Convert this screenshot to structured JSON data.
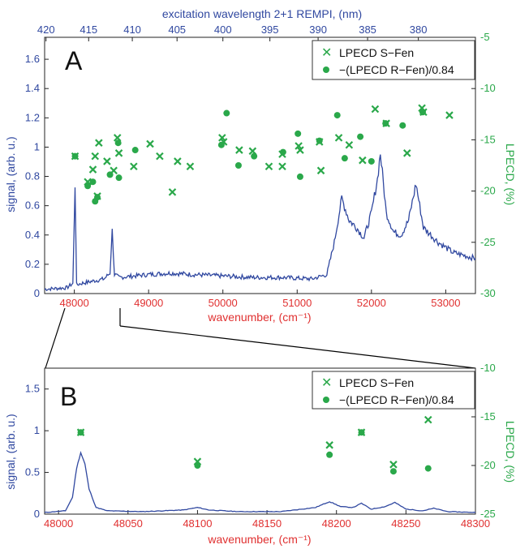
{
  "chart_data": [
    {
      "panel": "A",
      "type": "line+scatter",
      "panel_label": "A",
      "xlabel": "wavenumber, (cm⁻¹)",
      "ylabel_left": "signal, (arb. u.)",
      "ylabel_right": "LPECD, (%)",
      "xlabel_top": "excitation wavelength 2+1 REMPI, (nm)",
      "xlim": [
        47600,
        53400
      ],
      "ylim_left": [
        0,
        1.75
      ],
      "ylim_right": [
        -30,
        -5
      ],
      "xticks": [
        "48000",
        "49000",
        "50000",
        "51000",
        "52000",
        "53000"
      ],
      "yticks_left": [
        "0",
        "0.2",
        "0.4",
        "0.6",
        "0.8",
        "1",
        "1.2",
        "1.4",
        "1.6"
      ],
      "yticks_right": [
        "-30",
        "-25",
        "-20",
        "-15",
        "-10",
        "-5"
      ],
      "xticks_top": [
        "420",
        "415",
        "410",
        "405",
        "400",
        "395",
        "390",
        "385",
        "380"
      ],
      "legend": {
        "position": "top-right",
        "entries": [
          "LPECD S−Fen",
          "−(LPECD R−Fen)/0.84"
        ]
      },
      "signal": [
        [
          47600,
          0.03
        ],
        [
          47900,
          0.04
        ],
        [
          47980,
          0.07
        ],
        [
          48010,
          0.74
        ],
        [
          48030,
          0.06
        ],
        [
          48100,
          0.07
        ],
        [
          48200,
          0.08
        ],
        [
          48300,
          0.09
        ],
        [
          48400,
          0.1
        ],
        [
          48480,
          0.14
        ],
        [
          48510,
          0.43
        ],
        [
          48540,
          0.13
        ],
        [
          48600,
          0.11
        ],
        [
          48800,
          0.12
        ],
        [
          49000,
          0.13
        ],
        [
          49300,
          0.14
        ],
        [
          49600,
          0.13
        ],
        [
          50000,
          0.12
        ],
        [
          50400,
          0.11
        ],
        [
          50800,
          0.11
        ],
        [
          51200,
          0.1
        ],
        [
          51400,
          0.13
        ],
        [
          51500,
          0.35
        ],
        [
          51600,
          0.65
        ],
        [
          51700,
          0.5
        ],
        [
          51800,
          0.45
        ],
        [
          51900,
          0.38
        ],
        [
          52000,
          0.55
        ],
        [
          52080,
          0.78
        ],
        [
          52120,
          0.96
        ],
        [
          52200,
          0.55
        ],
        [
          52300,
          0.42
        ],
        [
          52400,
          0.4
        ],
        [
          52500,
          0.5
        ],
        [
          52600,
          0.75
        ],
        [
          52700,
          0.45
        ],
        [
          52900,
          0.35
        ],
        [
          53100,
          0.28
        ],
        [
          53400,
          0.24
        ]
      ],
      "series_s_fen": [
        [
          48010,
          -16.6
        ],
        [
          48180,
          -19.1
        ],
        [
          48250,
          -17.9
        ],
        [
          48280,
          -16.6
        ],
        [
          48310,
          -20.5
        ],
        [
          48330,
          -15.3
        ],
        [
          48440,
          -17.1
        ],
        [
          48530,
          -18.0
        ],
        [
          48580,
          -14.8
        ],
        [
          48600,
          -16.3
        ],
        [
          48800,
          -17.6
        ],
        [
          49020,
          -15.4
        ],
        [
          49150,
          -16.6
        ],
        [
          49320,
          -20.1
        ],
        [
          49390,
          -17.1
        ],
        [
          49560,
          -17.6
        ],
        [
          49990,
          -14.8
        ],
        [
          50010,
          -15.2
        ],
        [
          50220,
          -16.0
        ],
        [
          50400,
          -16.1
        ],
        [
          50620,
          -17.6
        ],
        [
          50800,
          -16.4
        ],
        [
          50800,
          -17.6
        ],
        [
          51020,
          -15.6
        ],
        [
          51040,
          -16.0
        ],
        [
          51300,
          -15.2
        ],
        [
          51320,
          -18.0
        ],
        [
          51560,
          -14.8
        ],
        [
          51700,
          -15.5
        ],
        [
          51880,
          -17.0
        ],
        [
          52050,
          -12.0
        ],
        [
          52200,
          -13.4
        ],
        [
          52480,
          -16.3
        ],
        [
          52680,
          -11.9
        ],
        [
          52700,
          -12.3
        ],
        [
          53050,
          -12.6
        ]
      ],
      "series_r_fen": [
        [
          48010,
          -16.6
        ],
        [
          48180,
          -19.5
        ],
        [
          48250,
          -19.1
        ],
        [
          48280,
          -21.0
        ],
        [
          48310,
          -20.6
        ],
        [
          48480,
          -18.4
        ],
        [
          48600,
          -18.7
        ],
        [
          48820,
          -16.0
        ],
        [
          48590,
          -15.3
        ],
        [
          49980,
          -15.5
        ],
        [
          50050,
          -12.4
        ],
        [
          50210,
          -17.5
        ],
        [
          50420,
          -16.6
        ],
        [
          50810,
          -16.2
        ],
        [
          51010,
          -14.4
        ],
        [
          51040,
          -18.6
        ],
        [
          51300,
          -15.1
        ],
        [
          51540,
          -12.6
        ],
        [
          51640,
          -16.8
        ],
        [
          51850,
          -14.7
        ],
        [
          52000,
          -17.1
        ],
        [
          52190,
          -13.4
        ],
        [
          52420,
          -13.6
        ],
        [
          52690,
          -12.3
        ]
      ]
    },
    {
      "panel": "B",
      "type": "line+scatter",
      "panel_label": "B",
      "xlabel": "wavenumber, (cm⁻¹)",
      "ylabel_left": "signal, (arb. u.)",
      "ylabel_right": "LPECD, (%)",
      "xlim": [
        47990,
        48300
      ],
      "ylim_left": [
        0,
        1.75
      ],
      "ylim_right": [
        -25,
        -10
      ],
      "xticks": [
        "48000",
        "48050",
        "48100",
        "48150",
        "48200",
        "48250",
        "48300"
      ],
      "yticks_left": [
        "0",
        "0.5",
        "1",
        "1.5"
      ],
      "yticks_right": [
        "-25",
        "-20",
        "-15",
        "-10"
      ],
      "legend": {
        "position": "top-right",
        "entries": [
          "LPECD S−Fen",
          "−(LPECD R−Fen)/0.84"
        ]
      },
      "signal": [
        [
          47990,
          0.02
        ],
        [
          48005,
          0.04
        ],
        [
          48010,
          0.2
        ],
        [
          48013,
          0.55
        ],
        [
          48016,
          0.74
        ],
        [
          48019,
          0.6
        ],
        [
          48022,
          0.3
        ],
        [
          48027,
          0.08
        ],
        [
          48035,
          0.04
        ],
        [
          48060,
          0.03
        ],
        [
          48090,
          0.05
        ],
        [
          48100,
          0.08
        ],
        [
          48108,
          0.05
        ],
        [
          48130,
          0.03
        ],
        [
          48160,
          0.03
        ],
        [
          48185,
          0.08
        ],
        [
          48195,
          0.15
        ],
        [
          48203,
          0.09
        ],
        [
          48212,
          0.08
        ],
        [
          48218,
          0.13
        ],
        [
          48225,
          0.06
        ],
        [
          48235,
          0.09
        ],
        [
          48242,
          0.14
        ],
        [
          48250,
          0.06
        ],
        [
          48262,
          0.04
        ],
        [
          48270,
          0.07
        ],
        [
          48280,
          0.03
        ],
        [
          48300,
          0.02
        ]
      ],
      "series_s_fen": [
        [
          48016,
          -16.6
        ],
        [
          48100,
          -19.6
        ],
        [
          48195,
          -17.9
        ],
        [
          48218,
          -16.6
        ],
        [
          48241,
          -19.9
        ],
        [
          48266,
          -15.3
        ]
      ],
      "series_r_fen": [
        [
          48016,
          -16.6
        ],
        [
          48100,
          -20.0
        ],
        [
          48195,
          -18.9
        ],
        [
          48218,
          -16.6
        ],
        [
          48241,
          -20.6
        ],
        [
          48266,
          -20.3
        ]
      ]
    }
  ],
  "colors": {
    "signal": "#3048a0",
    "scatter": "#2aa84a",
    "xaxis": "#e03030",
    "zoom_lines": "#000000"
  }
}
